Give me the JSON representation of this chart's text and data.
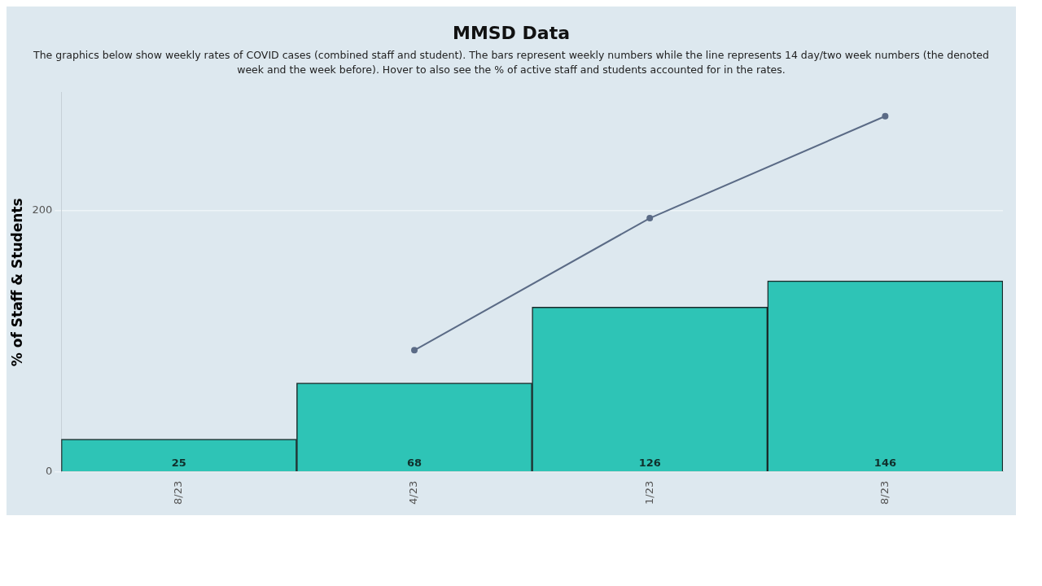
{
  "chart_data": {
    "type": "bar",
    "title": "MMSD Data",
    "subtitle": "The graphics below show weekly rates of COVID cases (combined staff and student). The bars represent weekly numbers while the line represents 14 day/two week numbers (the denoted week and the week before). Hover to also see the % of active staff and students accounted for in the rates.",
    "ylabel": "% of Staff & Students",
    "categories": [
      "8/23",
      "4/23",
      "1/23",
      "8/23"
    ],
    "series": [
      {
        "color": "#2ec4b6",
        "values": [
          25,
          68,
          126,
          146
        ],
        "value_labels": [
          "25",
          "68",
          "126",
          "146"
        ]
      },
      {
        "type": "line",
        "color": "#5b6b86",
        "values": [
          null,
          93,
          194,
          272
        ],
        "marker": "circle",
        "line_style": "solid"
      }
    ],
    "ylim": [
      0,
      290
    ],
    "yticks": [
      0,
      200
    ],
    "grid": "y"
  }
}
